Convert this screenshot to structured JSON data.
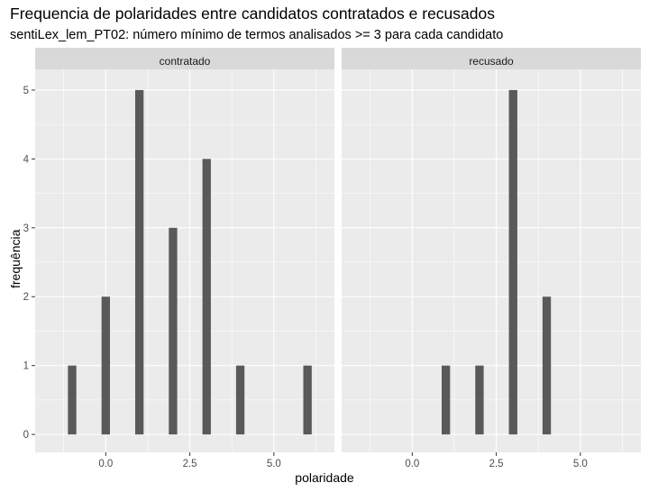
{
  "chart_data": {
    "type": "bar",
    "title": "Frequencia de polaridades entre candidatos contratados e recusados",
    "subtitle": "sentiLex_lem_PT02: número mínimo de termos analisados >= 3 para cada candidato",
    "xlabel": "polaridade",
    "ylabel": "frequência",
    "xlim": [
      -2.1,
      6.8
    ],
    "ylim": [
      -0.26,
      5.3
    ],
    "x_ticks": [
      0.0,
      2.5,
      5.0
    ],
    "x_tick_labels": [
      "0.0",
      "2.5",
      "5.0"
    ],
    "y_ticks": [
      0,
      1,
      2,
      3,
      4,
      5
    ],
    "y_tick_labels": [
      "0",
      "1",
      "2",
      "3",
      "4",
      "5"
    ],
    "grid": true,
    "bar_color": "#595959",
    "panel_bg": "#ebebeb",
    "strip_bg": "#d9d9d9",
    "facets": [
      {
        "label": "contratado",
        "bars": [
          {
            "x": -1.0,
            "y": 1
          },
          {
            "x": 0.0,
            "y": 2
          },
          {
            "x": 1.0,
            "y": 5
          },
          {
            "x": 2.0,
            "y": 3
          },
          {
            "x": 3.0,
            "y": 4
          },
          {
            "x": 4.0,
            "y": 1
          },
          {
            "x": 6.0,
            "y": 1
          }
        ]
      },
      {
        "label": "recusado",
        "bars": [
          {
            "x": 1.0,
            "y": 1
          },
          {
            "x": 2.0,
            "y": 1
          },
          {
            "x": 3.0,
            "y": 5
          },
          {
            "x": 4.0,
            "y": 2
          }
        ]
      }
    ]
  }
}
